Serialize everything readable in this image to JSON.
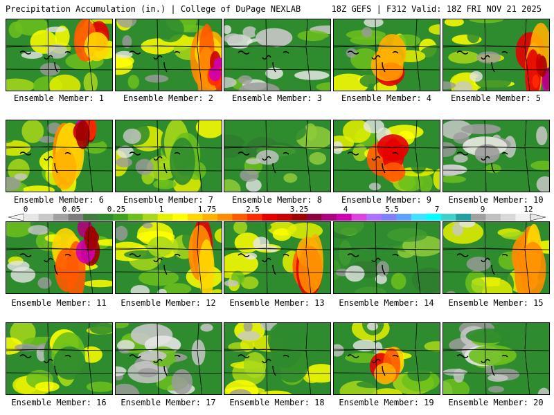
{
  "header": {
    "title": "Precipitation Accumulation (in.) | College of DuPage NEXLAB",
    "run_info": "18Z GEFS | F312 Valid: 18Z FRI NOV 21 2025"
  },
  "colorbar": {
    "labels": [
      "0",
      "0.05",
      "0.25",
      "1",
      "1.75",
      "2.5",
      "3.25",
      "4",
      "5.5",
      "7",
      "9",
      "12"
    ],
    "colors": [
      "#e6e6e6",
      "#c8c8c8",
      "#a0a0a0",
      "#7c7c7c",
      "#3f7a3f",
      "#2e8b2e",
      "#40a020",
      "#6cbf1c",
      "#a8d81a",
      "#e4f000",
      "#ffff00",
      "#ffd700",
      "#ffb000",
      "#ff8c00",
      "#ff5a00",
      "#ff2a00",
      "#e60000",
      "#c80000",
      "#a00000",
      "#900040",
      "#b00080",
      "#d000b0",
      "#e040e0",
      "#b070ff",
      "#8080ff",
      "#60a0ff",
      "#40e0ff",
      "#00ffff",
      "#40d0d0",
      "#20a0a0",
      "#a0a0a0",
      "#c0c0c0",
      "#d8d8d8",
      "#f0f0f0"
    ]
  },
  "members": [
    {
      "label": "Ensemble Member: 1",
      "hot": "right"
    },
    {
      "label": "Ensemble Member: 2",
      "hot": "east-strong"
    },
    {
      "label": "Ensemble Member: 3",
      "hot": "gray"
    },
    {
      "label": "Ensemble Member: 4",
      "hot": "center"
    },
    {
      "label": "Ensemble Member: 5",
      "hot": "east-strong"
    },
    {
      "label": "Ensemble Member: 6",
      "hot": "center-strong"
    },
    {
      "label": "Ensemble Member: 7",
      "hot": "yellow"
    },
    {
      "label": "Ensemble Member: 8",
      "hot": "green"
    },
    {
      "label": "Ensemble Member: 9",
      "hot": "center"
    },
    {
      "label": "Ensemble Member: 10",
      "hot": "gray"
    },
    {
      "label": "Ensemble Member: 11",
      "hot": "center-strong"
    },
    {
      "label": "Ensemble Member: 12",
      "hot": "east"
    },
    {
      "label": "Ensemble Member: 13",
      "hot": "east"
    },
    {
      "label": "Ensemble Member: 14",
      "hot": "green"
    },
    {
      "label": "Ensemble Member: 15",
      "hot": "east"
    },
    {
      "label": "Ensemble Member: 16",
      "hot": "yellow"
    },
    {
      "label": "Ensemble Member: 17",
      "hot": "gray"
    },
    {
      "label": "Ensemble Member: 18",
      "hot": "yellow"
    },
    {
      "label": "Ensemble Member: 19",
      "hot": "center"
    },
    {
      "label": "Ensemble Member: 20",
      "hot": "gray"
    }
  ]
}
